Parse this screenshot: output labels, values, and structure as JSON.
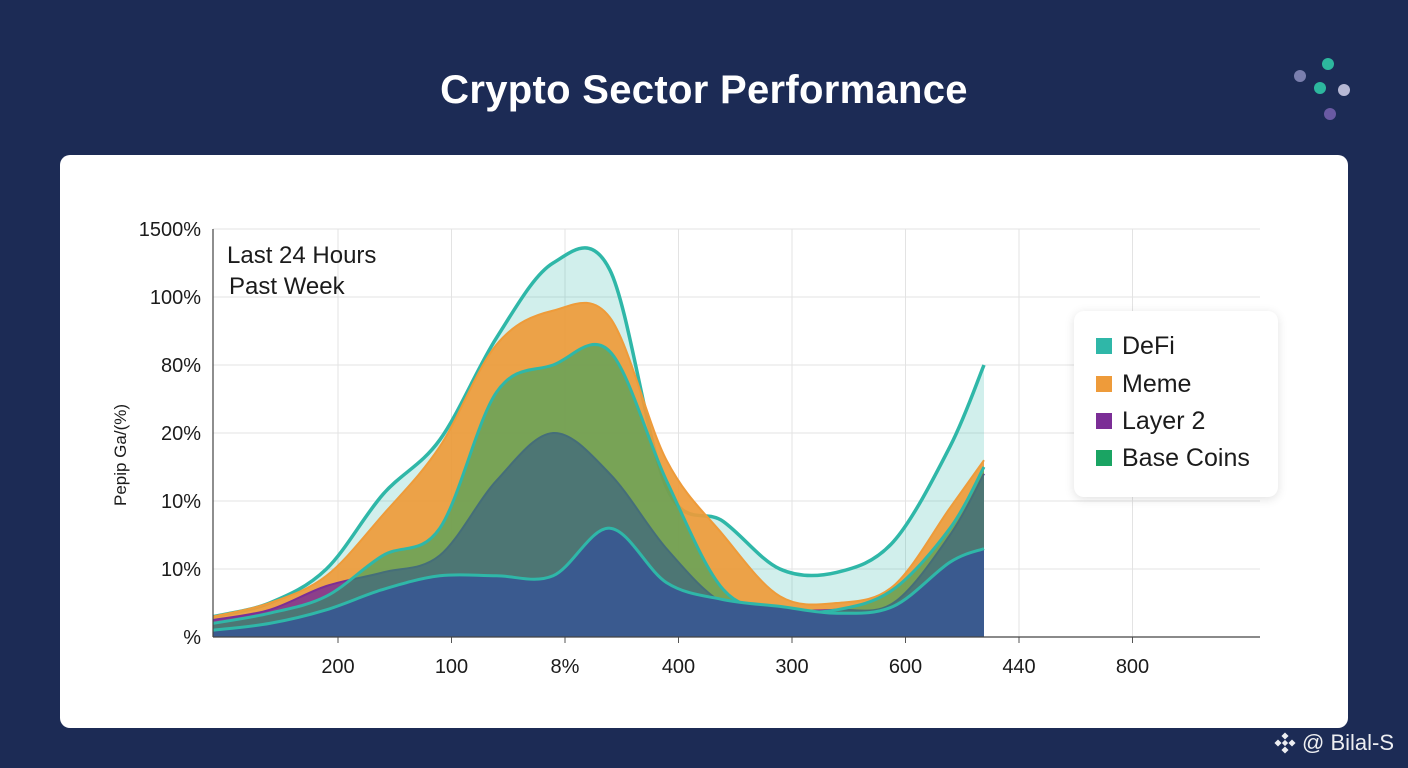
{
  "title": "Crypto Sector Performance",
  "brand_dot_colors": [
    "#2db79e",
    "#7a7fae",
    "#2db79e",
    "#b6b8d4",
    "#6a5aa3"
  ],
  "watermark": {
    "text": "@ Bilal-S",
    "icon": "binance-diamond-icon"
  },
  "colors": {
    "background": "#1c2b55",
    "card": "#ffffff"
  },
  "chart_data": {
    "type": "area",
    "title": "Crypto Sector Performance",
    "ylabel": "Pepip Ga/(%)",
    "annotations": [
      "Last 24 Hours",
      "Past Week"
    ],
    "y_ticks": [
      "%",
      "10%",
      "10%",
      "20%",
      "80%",
      "100%",
      "1500%"
    ],
    "x_ticks": [
      "200",
      "100",
      "8%",
      "400",
      "300",
      "600",
      "440",
      "800"
    ],
    "grid": true,
    "legend_position": "right",
    "legend": [
      {
        "name": "DeFi",
        "color": "#2fb7a8"
      },
      {
        "name": "Meme",
        "color": "#ee9b3a"
      },
      {
        "name": "Layer 2",
        "color": "#7b2e96"
      },
      {
        "name": "Base Coins",
        "color": "#1aa463"
      }
    ],
    "x": [
      0,
      0.5,
      1,
      1.5,
      2,
      2.5,
      3,
      3.5,
      4,
      4.5,
      5,
      5.5,
      6,
      6.5,
      6.8
    ],
    "series": [
      {
        "name": "DeFi",
        "color": "#2fb7a8",
        "values": [
          0.3,
          0.5,
          1.0,
          2.1,
          2.9,
          4.4,
          5.5,
          5.4,
          2.2,
          1.7,
          1.0,
          0.95,
          1.4,
          2.8,
          4.0
        ]
      },
      {
        "name": "Meme",
        "color": "#ee9b3a",
        "values": [
          0.3,
          0.5,
          0.9,
          1.8,
          2.8,
          4.3,
          4.8,
          4.7,
          2.6,
          1.5,
          0.6,
          0.5,
          0.75,
          1.9,
          2.6
        ]
      },
      {
        "name": "Layer 2",
        "color": "#7b2e96",
        "values": [
          0.25,
          0.4,
          0.75,
          0.95,
          1.2,
          2.3,
          3.0,
          2.4,
          1.3,
          0.5,
          0.4,
          0.4,
          0.5,
          1.5,
          2.4
        ]
      },
      {
        "name": "Base Coins",
        "color": "#1aa463",
        "values": [
          0.2,
          0.35,
          0.6,
          1.2,
          1.6,
          3.6,
          4.0,
          4.2,
          2.3,
          0.7,
          0.4,
          0.4,
          0.7,
          1.6,
          2.5
        ]
      },
      {
        "name": "",
        "color": "#3a5a8f",
        "values": [
          0.1,
          0.2,
          0.4,
          0.7,
          0.9,
          0.9,
          0.9,
          1.6,
          0.8,
          0.55,
          0.45,
          0.35,
          0.45,
          1.1,
          1.3
        ]
      }
    ]
  }
}
